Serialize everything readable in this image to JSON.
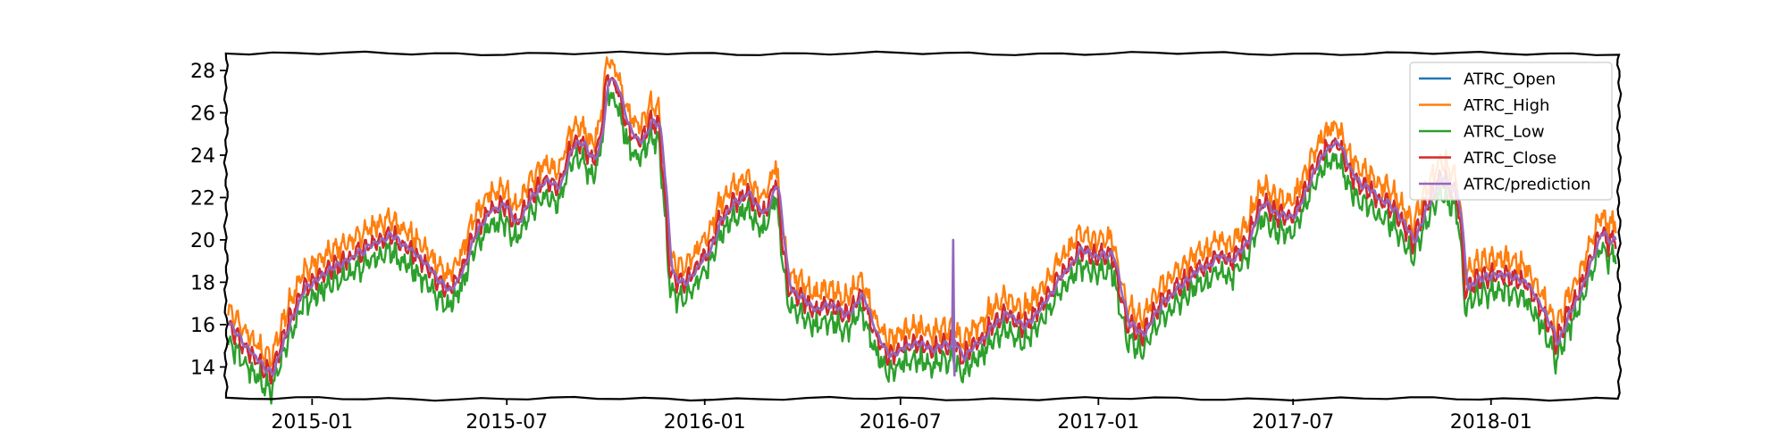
{
  "chart_data": {
    "type": "line",
    "title": "",
    "xlabel": "",
    "ylabel": "",
    "x_range": [
      "2014-10-13",
      "2018-04-30"
    ],
    "ylim": [
      12.5,
      28.8
    ],
    "x_ticks": [
      {
        "date": "2015-01-01",
        "label": "2015-01"
      },
      {
        "date": "2015-07-01",
        "label": "2015-07"
      },
      {
        "date": "2016-01-01",
        "label": "2016-01"
      },
      {
        "date": "2016-07-01",
        "label": "2016-07"
      },
      {
        "date": "2017-01-01",
        "label": "2017-01"
      },
      {
        "date": "2017-07-01",
        "label": "2017-07"
      },
      {
        "date": "2018-01-01",
        "label": "2018-01"
      }
    ],
    "y_ticks": [
      14,
      16,
      18,
      20,
      22,
      24,
      26,
      28
    ],
    "grid": false,
    "legend": "top-right",
    "close_points": [
      [
        "2014-10-15",
        15.9
      ],
      [
        "2014-10-29",
        15.0
      ],
      [
        "2014-11-12",
        14.2
      ],
      [
        "2014-11-24",
        13.6
      ],
      [
        "2014-12-03",
        15.1
      ],
      [
        "2014-12-12",
        16.4
      ],
      [
        "2014-12-22",
        17.6
      ],
      [
        "2015-01-06",
        18.2
      ],
      [
        "2015-01-20",
        18.7
      ],
      [
        "2015-02-03",
        19.1
      ],
      [
        "2015-02-17",
        19.5
      ],
      [
        "2015-03-03",
        20.0
      ],
      [
        "2015-03-17",
        20.2
      ],
      [
        "2015-03-31",
        19.6
      ],
      [
        "2015-04-14",
        18.9
      ],
      [
        "2015-04-28",
        18.1
      ],
      [
        "2015-05-08",
        17.5
      ],
      [
        "2015-05-20",
        18.6
      ],
      [
        "2015-06-02",
        20.4
      ],
      [
        "2015-06-15",
        21.4
      ],
      [
        "2015-06-29",
        21.6
      ],
      [
        "2015-07-10",
        20.8
      ],
      [
        "2015-07-22",
        22.0
      ],
      [
        "2015-08-05",
        22.8
      ],
      [
        "2015-08-17",
        22.4
      ],
      [
        "2015-08-28",
        24.2
      ],
      [
        "2015-09-08",
        24.6
      ],
      [
        "2015-09-18",
        23.8
      ],
      [
        "2015-09-25",
        24.4
      ],
      [
        "2015-10-02",
        27.8
      ],
      [
        "2015-10-12",
        27.2
      ],
      [
        "2015-10-22",
        25.2
      ],
      [
        "2015-11-02",
        24.6
      ],
      [
        "2015-11-12",
        25.8
      ],
      [
        "2015-11-20",
        25.2
      ],
      [
        "2015-11-30",
        18.4
      ],
      [
        "2015-12-10",
        17.9
      ],
      [
        "2015-12-21",
        18.4
      ],
      [
        "2016-01-04",
        19.5
      ],
      [
        "2016-01-15",
        21.0
      ],
      [
        "2016-01-29",
        21.8
      ],
      [
        "2016-02-10",
        22.2
      ],
      [
        "2016-02-24",
        21.2
      ],
      [
        "2016-03-07",
        22.8
      ],
      [
        "2016-03-18",
        17.8
      ],
      [
        "2016-03-31",
        17.2
      ],
      [
        "2016-04-13",
        16.6
      ],
      [
        "2016-04-27",
        17.0
      ],
      [
        "2016-05-11",
        16.4
      ],
      [
        "2016-05-25",
        17.4
      ],
      [
        "2016-06-08",
        15.4
      ],
      [
        "2016-06-20",
        14.4
      ],
      [
        "2016-06-30",
        14.8
      ],
      [
        "2016-07-14",
        15.2
      ],
      [
        "2016-07-28",
        14.8
      ],
      [
        "2016-08-11",
        15.0
      ],
      [
        "2016-08-19",
        15.3
      ],
      [
        "2016-08-26",
        14.4
      ],
      [
        "2016-09-09",
        15.0
      ],
      [
        "2016-09-23",
        16.0
      ],
      [
        "2016-10-07",
        16.6
      ],
      [
        "2016-10-21",
        15.9
      ],
      [
        "2016-11-04",
        16.6
      ],
      [
        "2016-11-18",
        17.6
      ],
      [
        "2016-12-02",
        18.8
      ],
      [
        "2016-12-16",
        19.6
      ],
      [
        "2016-12-30",
        19.2
      ],
      [
        "2017-01-13",
        19.4
      ],
      [
        "2017-01-27",
        16.2
      ],
      [
        "2017-02-10",
        15.4
      ],
      [
        "2017-02-24",
        16.8
      ],
      [
        "2017-03-10",
        17.6
      ],
      [
        "2017-03-24",
        18.2
      ],
      [
        "2017-04-07",
        18.6
      ],
      [
        "2017-04-21",
        19.2
      ],
      [
        "2017-05-05",
        19.0
      ],
      [
        "2017-05-19",
        20.0
      ],
      [
        "2017-06-02",
        21.8
      ],
      [
        "2017-06-16",
        21.2
      ],
      [
        "2017-06-30",
        21.0
      ],
      [
        "2017-07-14",
        22.6
      ],
      [
        "2017-07-28",
        24.2
      ],
      [
        "2017-08-11",
        24.6
      ],
      [
        "2017-08-25",
        23.0
      ],
      [
        "2017-09-08",
        22.4
      ],
      [
        "2017-09-22",
        21.8
      ],
      [
        "2017-10-06",
        21.2
      ],
      [
        "2017-10-20",
        19.9
      ],
      [
        "2017-11-03",
        21.8
      ],
      [
        "2017-11-17",
        23.0
      ],
      [
        "2017-12-01",
        22.0
      ],
      [
        "2017-12-08",
        17.8
      ],
      [
        "2017-12-22",
        18.2
      ],
      [
        "2018-01-05",
        18.4
      ],
      [
        "2018-01-19",
        18.3
      ],
      [
        "2018-02-02",
        17.9
      ],
      [
        "2018-02-16",
        16.8
      ],
      [
        "2018-03-02",
        15.2
      ],
      [
        "2018-03-16",
        16.8
      ],
      [
        "2018-03-30",
        18.4
      ],
      [
        "2018-04-13",
        20.6
      ],
      [
        "2018-04-20",
        19.8
      ],
      [
        "2018-04-27",
        20.1
      ]
    ],
    "series": [
      {
        "name": "ATRC_Open",
        "color": "#1f77b4",
        "offset": 0.0
      },
      {
        "name": "ATRC_High",
        "color": "#ff7f0e",
        "offset": 0.45
      },
      {
        "name": "ATRC_Low",
        "color": "#2ca02c",
        "offset": -0.45
      },
      {
        "name": "ATRC_Close",
        "color": "#d62728",
        "offset": 0.0
      },
      {
        "name": "ATRC/prediction",
        "color": "#9467bd",
        "offset": 0.0
      }
    ],
    "prediction_spike": {
      "date": "2016-08-19",
      "low": 13.6,
      "high": 20.0
    }
  }
}
